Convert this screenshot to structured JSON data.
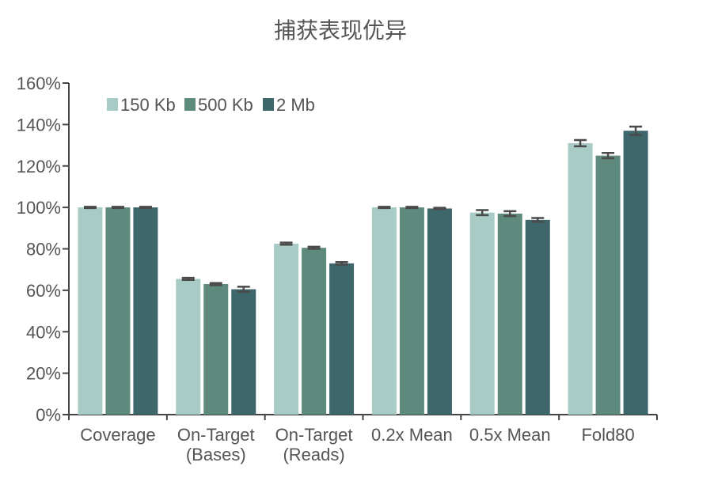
{
  "chart_data": {
    "type": "bar",
    "title": "捕获表现优异",
    "xlabel": "",
    "ylabel": "",
    "ylim": [
      0,
      160
    ],
    "ytick_values": [
      0,
      20,
      40,
      60,
      80,
      100,
      120,
      140,
      160
    ],
    "ytick_labels": [
      "0%",
      "20%",
      "40%",
      "60%",
      "80%",
      "100%",
      "120%",
      "140%",
      "160%"
    ],
    "categories": [
      [
        "Coverage"
      ],
      [
        "On-Target",
        "(Bases)"
      ],
      [
        "On-Target",
        "(Reads)"
      ],
      [
        "0.2x Mean"
      ],
      [
        "0.5x Mean"
      ],
      [
        "Fold80"
      ]
    ],
    "legend_position": "top-left",
    "grid": false,
    "series": [
      {
        "name": "150 Kb",
        "color": "#a8cbc5",
        "values": [
          100,
          65.5,
          82.5,
          100,
          97.5,
          131
        ],
        "errors": [
          0.3,
          0.5,
          0.5,
          0.3,
          1.2,
          1.5
        ]
      },
      {
        "name": "500 Kb",
        "color": "#5e8a7e",
        "values": [
          100,
          63,
          80.5,
          100,
          97,
          125
        ],
        "errors": [
          0.3,
          0.5,
          0.5,
          0.3,
          1.2,
          1.3
        ]
      },
      {
        "name": "2 Mb",
        "color": "#3d676b",
        "values": [
          100,
          60.5,
          73,
          99.5,
          94,
          137
        ],
        "errors": [
          0.3,
          1.2,
          0.6,
          0.3,
          0.9,
          2.0
        ]
      }
    ]
  }
}
